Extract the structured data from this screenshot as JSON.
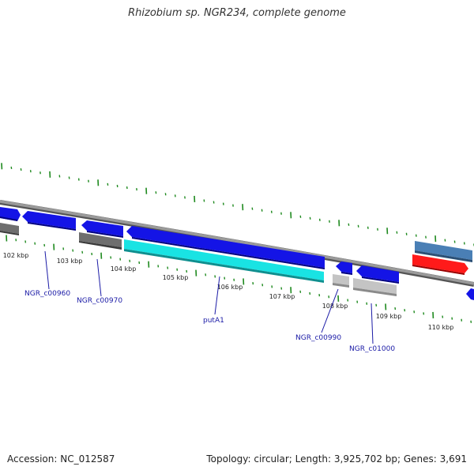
{
  "title": "Rhizobium sp. NGR234, complete genome",
  "footer": {
    "accession": "Accession: NC_012587",
    "summary": "Topology: circular; Length: 3,925,702 bp; Genes: 3,691"
  },
  "colors": {
    "backbone": "#8a8a8a",
    "tick": "#1f8a1f",
    "label": "#1a1aa6",
    "gene_blue": "#1414e6",
    "gene_cyan": "#19e3e3",
    "gene_dark_grey": "#6e6e6e",
    "gene_light_grey": "#c4c4c4",
    "gene_steel": "#4a7fb5",
    "gene_red": "#ff1a1a"
  },
  "scale_labels": [
    "102 kbp",
    "103 kbp",
    "104 kbp",
    "105 kbp",
    "106 kbp",
    "107 kbp",
    "108 kbp",
    "109 kbp",
    "110 kbp"
  ],
  "gene_labels": [
    "NGR_c00960",
    "NGR_c00970",
    "putA1",
    "NGR_c00990",
    "NGR_c01000"
  ]
}
